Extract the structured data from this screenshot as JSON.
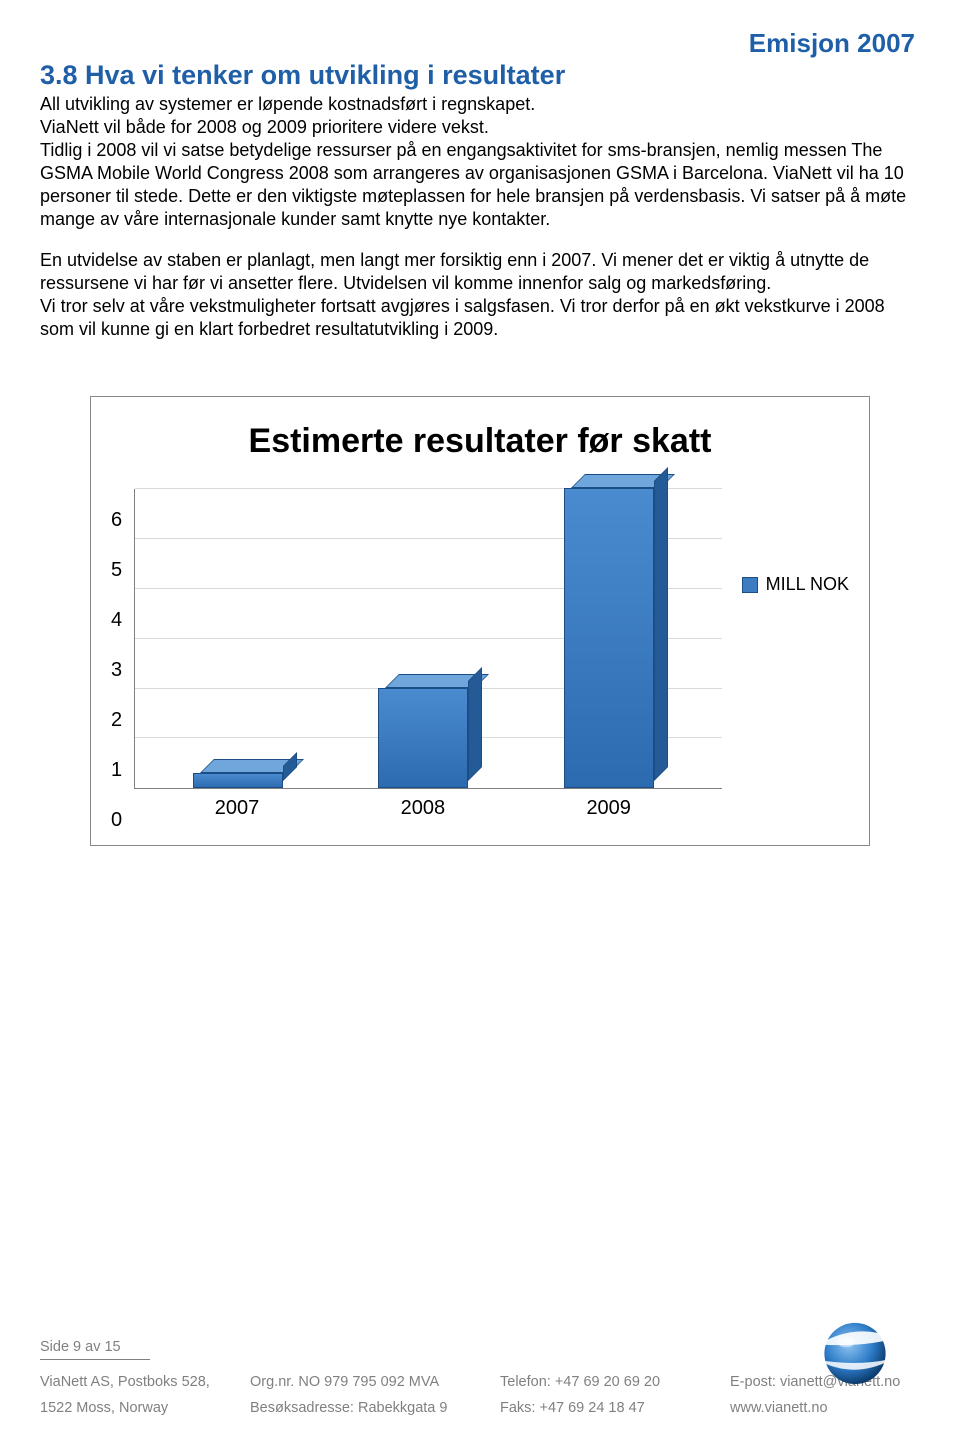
{
  "header": {
    "brand": "Emisjon 2007"
  },
  "section": {
    "heading": "3.8 Hva vi tenker om utvikling i resultater",
    "p1": "All utvikling av systemer er løpende kostnadsført i regnskapet.",
    "p2": "ViaNett vil både for 2008 og 2009 prioritere videre vekst.",
    "p3": "Tidlig i 2008 vil vi satse betydelige ressurser på en engangsaktivitet for sms-bransjen, nemlig messen The GSMA Mobile World Congress 2008 som arrangeres av organisasjonen GSMA i Barcelona. ViaNett vil ha 10 personer til stede. Dette er den viktigste møteplassen for hele bransjen på verdensbasis. Vi satser på å møte mange av våre internasjonale kunder samt knytte nye kontakter.",
    "p4": "En utvidelse av staben er planlagt, men langt mer forsiktig enn i 2007. Vi mener det er viktig å utnytte de ressursene vi har før vi ansetter flere. Utvidelsen vil komme innenfor salg og markedsføring.",
    "p5": "Vi tror selv at våre vekstmuligheter fortsatt avgjøres i salgsfasen. Vi tror derfor på en økt vekstkurve i 2008 som vil kunne gi en klart forbedret resultatutvikling i 2009."
  },
  "chart": {
    "type": "bar",
    "title": "Estimerte resultater før skatt",
    "categories": [
      "2007",
      "2008",
      "2009"
    ],
    "values": [
      0.3,
      2.0,
      6.0
    ],
    "yticks": [
      "6",
      "5",
      "4",
      "3",
      "2",
      "1",
      "0"
    ],
    "ymax": 6,
    "legend_label": "MILL NOK",
    "bar_color": "#3d7cc0",
    "grid_color": "#d9d9d9"
  },
  "footer": {
    "page": "Side 9 av 15",
    "r1c1": "ViaNett AS, Postboks 528,",
    "r1c2": "Org.nr. NO 979 795 092 MVA",
    "r1c3": "Telefon: +47 69 20 69 20",
    "r1c4": "E-post: vianett@vianett.no",
    "r2c1": "1522 Moss, Norway",
    "r2c2": "Besøksadresse: Rabekkgata 9",
    "r2c3": "Faks: +47 69 24 18 47",
    "r2c4": "www.vianett.no"
  }
}
